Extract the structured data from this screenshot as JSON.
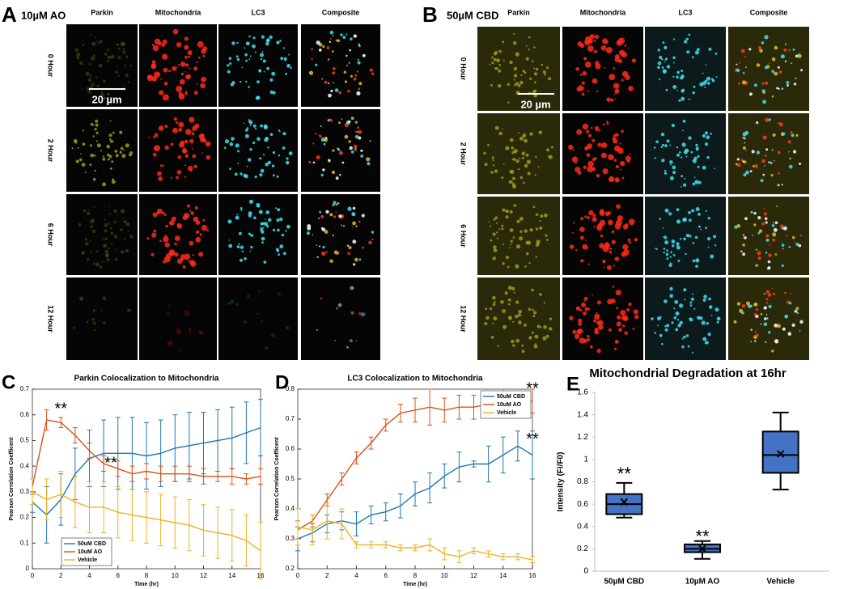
{
  "panels": [
    {
      "letter": "A",
      "condition": "10µM AO",
      "columns": [
        "Parkin",
        "Mitochondria",
        "LC3",
        "Composite"
      ],
      "rows": [
        "0 Hour",
        "2 Hour",
        "6 Hour",
        "12 Hour"
      ],
      "scale_bar": "20 µm"
    },
    {
      "letter": "B",
      "condition": "50µM CBD",
      "columns": [
        "Parkin",
        "Mitochondria",
        "LC3",
        "Composite"
      ],
      "rows": [
        "0 Hour",
        "2 Hour",
        "6 Hour",
        "12 Hour"
      ],
      "scale_bar": "20 µm"
    }
  ],
  "chart_data": [
    {
      "type": "line",
      "letter": "C",
      "title": "Parkin Colocalization to Mitochondria",
      "x_label": "Time (hr)",
      "y_label": "Pearson Correlation Coefficent",
      "x": [
        0,
        1,
        2,
        3,
        4,
        5,
        6,
        7,
        8,
        9,
        10,
        11,
        12,
        13,
        14,
        15,
        16
      ],
      "xlim": [
        0,
        16
      ],
      "xticks": [
        0,
        2,
        4,
        6,
        8,
        10,
        12,
        14,
        16
      ],
      "ylim": [
        0,
        0.7
      ],
      "yticks": [
        0,
        0.1,
        0.2,
        0.3,
        0.4,
        0.5,
        0.6,
        0.7
      ],
      "legend": "lower left",
      "annotations": [
        "**",
        "**"
      ],
      "series": [
        {
          "name": "50uM CBD",
          "color": "#1f77b4",
          "values": [
            0.26,
            0.21,
            0.27,
            0.37,
            0.43,
            0.45,
            0.45,
            0.45,
            0.44,
            0.45,
            0.47,
            0.48,
            0.49,
            0.5,
            0.51,
            0.53,
            0.55
          ],
          "errors": [
            0.04,
            0.11,
            0.1,
            0.1,
            0.11,
            0.13,
            0.14,
            0.14,
            0.13,
            0.13,
            0.13,
            0.13,
            0.12,
            0.12,
            0.12,
            0.12,
            0.11
          ]
        },
        {
          "name": "10uM AO",
          "color": "#d95319",
          "values": [
            0.32,
            0.58,
            0.57,
            0.52,
            0.46,
            0.41,
            0.39,
            0.37,
            0.38,
            0.37,
            0.37,
            0.37,
            0.36,
            0.36,
            0.36,
            0.35,
            0.36
          ],
          "errors": [
            0.03,
            0.04,
            0.02,
            0.03,
            0.03,
            0.03,
            0.03,
            0.03,
            0.03,
            0.03,
            0.03,
            0.03,
            0.03,
            0.02,
            0.03,
            0.02,
            0.03
          ]
        },
        {
          "name": "Vehicle",
          "color": "#edb120",
          "values": [
            0.3,
            0.27,
            0.29,
            0.26,
            0.24,
            0.24,
            0.22,
            0.21,
            0.2,
            0.19,
            0.18,
            0.17,
            0.15,
            0.14,
            0.13,
            0.11,
            0.07
          ],
          "errors": [
            0.05,
            0.08,
            0.09,
            0.1,
            0.1,
            0.1,
            0.1,
            0.1,
            0.1,
            0.1,
            0.1,
            0.1,
            0.1,
            0.1,
            0.1,
            0.1,
            0.11
          ]
        }
      ]
    },
    {
      "type": "line",
      "letter": "D",
      "title": "LC3 Colocalization to Mitochondria",
      "x_label": "Time (hr)",
      "y_label": "Pearson Correlation Coefficent",
      "x": [
        0,
        1,
        2,
        3,
        4,
        5,
        6,
        7,
        8,
        9,
        10,
        11,
        12,
        13,
        14,
        15,
        16
      ],
      "xlim": [
        0,
        16
      ],
      "xticks": [
        0,
        2,
        4,
        6,
        8,
        10,
        12,
        14,
        16
      ],
      "ylim": [
        0.2,
        0.8
      ],
      "yticks": [
        0.2,
        0.3,
        0.4,
        0.5,
        0.6,
        0.7,
        0.8
      ],
      "legend": "upper right",
      "annotations": [
        "**",
        "**"
      ],
      "series": [
        {
          "name": "50uM CBD",
          "color": "#1f77b4",
          "values": [
            0.3,
            0.32,
            0.35,
            0.36,
            0.35,
            0.38,
            0.39,
            0.41,
            0.45,
            0.47,
            0.51,
            0.54,
            0.55,
            0.55,
            0.58,
            0.61,
            0.58
          ],
          "errors": [
            0.04,
            0.03,
            0.03,
            0.03,
            0.04,
            0.03,
            0.03,
            0.04,
            0.04,
            0.05,
            0.04,
            0.05,
            0.01,
            0.06,
            0.06,
            0.05,
            0.08
          ]
        },
        {
          "name": "10uM AO",
          "color": "#d95319",
          "values": [
            0.33,
            0.36,
            0.43,
            0.5,
            0.57,
            0.62,
            0.68,
            0.72,
            0.73,
            0.74,
            0.73,
            0.74,
            0.74,
            0.75,
            0.76,
            0.75,
            0.76
          ],
          "errors": [
            0.03,
            0.02,
            0.02,
            0.02,
            0.02,
            0.02,
            0.02,
            0.03,
            0.04,
            0.06,
            0.04,
            0.04,
            0.04,
            0.04,
            0.04,
            0.04,
            0.04
          ]
        },
        {
          "name": "Vehicle",
          "color": "#edb120",
          "values": [
            0.34,
            0.33,
            0.36,
            0.35,
            0.28,
            0.28,
            0.28,
            0.27,
            0.27,
            0.28,
            0.25,
            0.24,
            0.26,
            0.25,
            0.24,
            0.24,
            0.23
          ],
          "errors": [
            0.06,
            0.05,
            0.06,
            0.05,
            0.01,
            0.01,
            0.01,
            0.01,
            0.01,
            0.02,
            0.02,
            0.02,
            0.01,
            0.01,
            0.01,
            0.01,
            0.01
          ]
        }
      ]
    },
    {
      "type": "box",
      "letter": "E",
      "title": "Mitochondrial Degradation at 16hr",
      "y_label": "Intensity (Fi/F0)",
      "categories": [
        "50µM CBD",
        "10µM AO",
        "Vehicle"
      ],
      "color": "#4472c4",
      "edge_color": "#000000",
      "annotations": [
        "**",
        "**"
      ],
      "ylim": [
        0,
        1.6
      ],
      "yticks": [
        0,
        0.2,
        0.4,
        0.6,
        0.8,
        1,
        1.2,
        1.4,
        1.6
      ],
      "boxes": [
        {
          "min": 0.48,
          "q1": 0.51,
          "median": 0.6,
          "q3": 0.69,
          "max": 0.79,
          "mean": 0.62
        },
        {
          "min": 0.11,
          "q1": 0.17,
          "median": 0.2,
          "q3": 0.24,
          "max": 0.27,
          "mean": 0.2
        },
        {
          "min": 0.73,
          "q1": 0.88,
          "median": 1.04,
          "q3": 1.25,
          "max": 1.42,
          "mean": 1.05
        }
      ]
    }
  ]
}
